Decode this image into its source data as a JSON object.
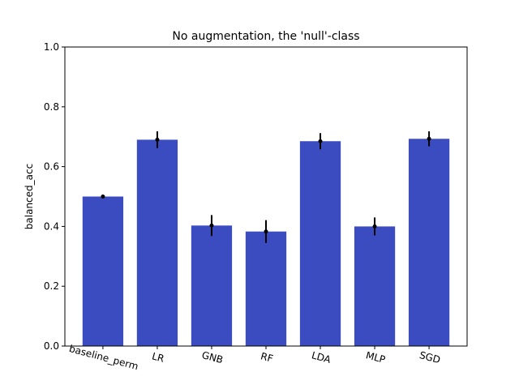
{
  "chart_data": {
    "type": "bar",
    "title": "No augmentation, the 'null'-class",
    "xlabel": "",
    "ylabel": "balanced_acc",
    "ylim": [
      0,
      1.0
    ],
    "yticks": [
      "0.0",
      "0.2",
      "0.4",
      "0.6",
      "0.8",
      "1.0"
    ],
    "categories": [
      "baseline_perm",
      "LR",
      "GNB",
      "RF",
      "LDA",
      "MLP",
      "SGD"
    ],
    "values": [
      0.5,
      0.69,
      0.403,
      0.383,
      0.685,
      0.4,
      0.693
    ],
    "errors": [
      0.0,
      0.028,
      0.035,
      0.038,
      0.027,
      0.03,
      0.025
    ],
    "bar_color": "#3b4cc0",
    "errorbar_color": "#000000",
    "grid": false
  }
}
